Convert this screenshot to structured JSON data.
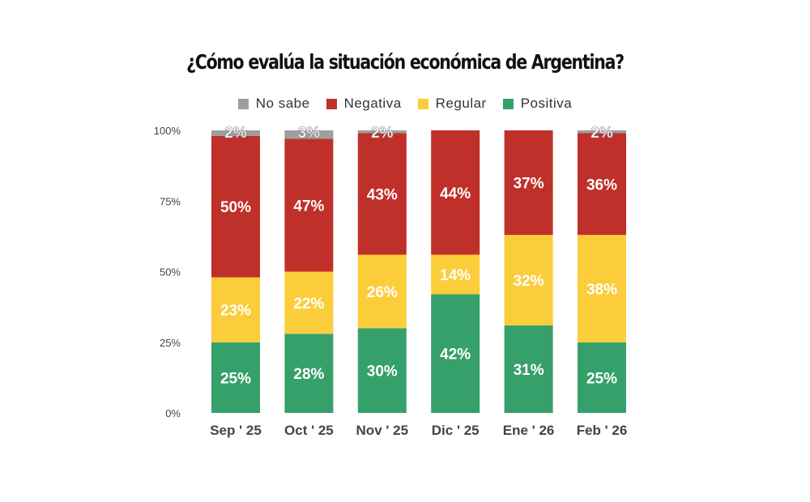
{
  "chart_data": {
    "type": "bar",
    "stacked": true,
    "title": "¿Cómo evalúa la situación económica de Argentina?",
    "xlabel": "",
    "ylabel": "",
    "ylim": [
      0,
      100
    ],
    "y_ticks": [
      "0%",
      "25%",
      "50%",
      "75%",
      "100%"
    ],
    "grid": false,
    "legend_position": "top",
    "categories": [
      "Sep ' 25",
      "Oct ' 25",
      "Nov ' 25",
      "Dic ' 25",
      "Ene ' 26",
      "Feb ' 26"
    ],
    "series": [
      {
        "name": "Positiva",
        "color": "#36a06b",
        "values": [
          25,
          28,
          30,
          42,
          31,
          25
        ]
      },
      {
        "name": "Regular",
        "color": "#fbcd3a",
        "values": [
          23,
          22,
          26,
          14,
          32,
          38
        ]
      },
      {
        "name": "Negativa",
        "color": "#c0302a",
        "values": [
          50,
          47,
          43,
          44,
          37,
          36
        ]
      },
      {
        "name": "No sabe",
        "color": "#9e9e9e",
        "values": [
          2,
          3,
          2,
          0,
          0,
          2
        ]
      }
    ],
    "legend_order": [
      "No sabe",
      "Negativa",
      "Regular",
      "Positiva"
    ]
  }
}
